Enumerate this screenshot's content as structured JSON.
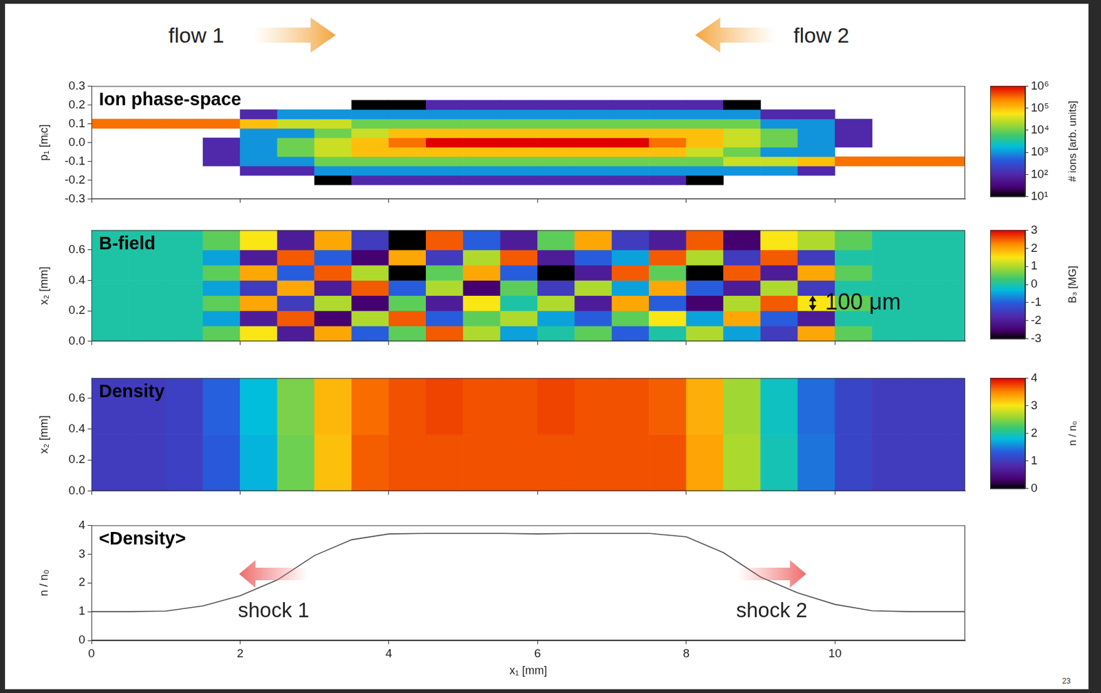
{
  "header": {
    "left": "flow 1",
    "right": "flow 2"
  },
  "page_number": "23",
  "chart_data": [
    {
      "type": "heatmap",
      "title": "Ion phase-space",
      "y_label": "p₁ [mᵢc]",
      "tick_labels": "y",
      "xlim": [
        0,
        11.75
      ],
      "xticks": [
        0,
        2,
        4,
        6,
        8,
        10
      ],
      "ylim": [
        -0.3,
        0.3
      ],
      "yticks": [
        -0.3,
        -0.2,
        -0.1,
        {
          "value": 0,
          "label": "0.0"
        },
        0.1,
        0.2,
        0.3
      ],
      "x_edges": [
        0,
        0.5,
        1,
        1.5,
        2,
        2.5,
        3,
        3.5,
        4,
        4.5,
        5,
        5.5,
        6,
        6.5,
        7,
        7.5,
        8,
        8.5,
        9,
        9.5,
        10,
        10.5,
        11,
        11.5,
        11.75
      ],
      "y_edges": [
        -0.275,
        -0.225,
        -0.175,
        -0.125,
        -0.075,
        -0.025,
        0.025,
        0.075,
        0.125,
        0.175,
        0.225,
        0.275
      ],
      "cells": [
        [
          null,
          null,
          null,
          null,
          null,
          null,
          null,
          null,
          null,
          null,
          null,
          null,
          null,
          null,
          null,
          null,
          null,
          null,
          null,
          null,
          null,
          null,
          null,
          null
        ],
        [
          null,
          null,
          null,
          null,
          null,
          null,
          10,
          100,
          100,
          100,
          100,
          100,
          100,
          100,
          100,
          100,
          10,
          null,
          null,
          null,
          null,
          null,
          null,
          null
        ],
        [
          null,
          null,
          null,
          null,
          100,
          100,
          1000,
          1000,
          1000,
          1000,
          1000,
          1000,
          1000,
          1000,
          1000,
          1000,
          1000,
          1000,
          1000,
          100,
          null,
          null,
          null,
          null
        ],
        [
          null,
          null,
          null,
          100,
          1000,
          1000,
          10000,
          10000,
          10000,
          10000,
          10000,
          10000,
          10000,
          10000,
          10000,
          10000,
          10000,
          30000,
          30000,
          100000,
          300000,
          300000,
          300000,
          300000
        ],
        [
          null,
          null,
          null,
          100,
          1000,
          10000,
          30000,
          100000,
          100000,
          100000,
          100000,
          100000,
          100000,
          100000,
          100000,
          100000,
          30000,
          10000,
          1000,
          1000,
          null,
          null,
          null,
          null
        ],
        [
          null,
          null,
          null,
          100,
          1000,
          10000,
          30000,
          100000,
          300000,
          1000000,
          1000000,
          1000000,
          1000000,
          1000000,
          1000000,
          300000,
          100000,
          30000,
          10000,
          1000,
          100,
          null,
          null,
          null
        ],
        [
          null,
          null,
          null,
          null,
          1000,
          1000,
          10000,
          30000,
          100000,
          100000,
          100000,
          100000,
          100000,
          100000,
          100000,
          100000,
          100000,
          30000,
          10000,
          1000,
          100,
          null,
          null,
          null
        ],
        [
          300000,
          300000,
          300000,
          300000,
          100000,
          30000,
          30000,
          10000,
          10000,
          10000,
          10000,
          10000,
          10000,
          10000,
          10000,
          10000,
          10000,
          10000,
          1000,
          1000,
          100,
          null,
          null,
          null
        ],
        [
          null,
          null,
          null,
          null,
          100,
          1000,
          1000,
          1000,
          1000,
          1000,
          1000,
          1000,
          1000,
          1000,
          1000,
          1000,
          1000,
          1000,
          100,
          100,
          null,
          null,
          null,
          null
        ],
        [
          null,
          null,
          null,
          null,
          null,
          null,
          null,
          10,
          10,
          100,
          100,
          100,
          100,
          100,
          100,
          100,
          100,
          10,
          null,
          null,
          null,
          null,
          null,
          null
        ],
        [
          null,
          null,
          null,
          null,
          null,
          null,
          null,
          null,
          null,
          null,
          null,
          null,
          null,
          null,
          null,
          null,
          null,
          null,
          null,
          null,
          null,
          null,
          null,
          null
        ]
      ],
      "colorbar": {
        "label": "# ions [arb. units]",
        "log": true,
        "range": [
          10,
          1000000
        ],
        "ticks": [
          {
            "value": 10,
            "label": "10¹"
          },
          {
            "value": 100,
            "label": "10²"
          },
          {
            "value": 1000,
            "label": "10³"
          },
          {
            "value": 10000,
            "label": "10⁴"
          },
          {
            "value": 100000,
            "label": "10⁵"
          },
          {
            "value": 1000000,
            "label": "10⁶"
          }
        ]
      }
    },
    {
      "type": "heatmap",
      "title": "B-field",
      "y_label": "x₂ [mm]",
      "tick_labels": "y",
      "xlim": [
        0,
        11.75
      ],
      "xticks": [
        0,
        2,
        4,
        6,
        8,
        10
      ],
      "ylim": [
        0,
        0.73
      ],
      "yticks": [
        {
          "value": 0,
          "label": "0.0"
        },
        0.2,
        0.4,
        0.6
      ],
      "x_edges": [
        0,
        0.5,
        1,
        1.5,
        2,
        2.5,
        3,
        3.5,
        4,
        4.5,
        5,
        5.5,
        6,
        6.5,
        7,
        7.5,
        8,
        8.5,
        9,
        9.5,
        10,
        10.5,
        11,
        11.5,
        11.75
      ],
      "y_edges": [
        0,
        0.1,
        0.2,
        0.3,
        0.4,
        0.5,
        0.6,
        0.73
      ],
      "cells": [
        [
          0,
          0,
          0,
          0.5,
          1.5,
          -2,
          2,
          -1,
          0.5,
          2.5,
          1,
          -0.5,
          0,
          0.5,
          -1,
          0,
          1,
          -0.5,
          -1.5,
          2,
          0.5,
          0,
          0,
          0
        ],
        [
          0,
          0,
          0,
          -0.5,
          -2,
          2.5,
          -2.5,
          1,
          2.5,
          -1,
          0.5,
          1,
          -0.5,
          -1,
          0.5,
          1.5,
          -0.5,
          2,
          -1,
          -2,
          0,
          0,
          0,
          0
        ],
        [
          0,
          0,
          0,
          0.5,
          2,
          -1.5,
          1,
          -2.5,
          0.5,
          -2,
          1.5,
          0,
          1,
          -2,
          2,
          -1,
          -2.5,
          1,
          2.5,
          1.5,
          0.5,
          0,
          0,
          0
        ],
        [
          0,
          0,
          0,
          -0.5,
          -1.5,
          2,
          -2,
          2.5,
          -1,
          1,
          -2.5,
          0.5,
          -1.5,
          1,
          -0.5,
          2,
          -1,
          -2,
          1,
          -1.5,
          0,
          0,
          0,
          0
        ],
        [
          0,
          0,
          0,
          0.5,
          2,
          -1,
          2.5,
          1,
          -3,
          0.5,
          2,
          -1,
          -3,
          -2,
          2.5,
          0.5,
          -3,
          2.5,
          -2,
          2,
          0.5,
          0,
          0,
          0
        ],
        [
          0,
          0,
          0,
          -0.5,
          -2,
          2.5,
          -1,
          -2.5,
          2,
          -1.5,
          1,
          2.5,
          -2,
          -1,
          -0.5,
          2.5,
          1,
          -1.5,
          2.5,
          -1.5,
          0,
          0,
          0,
          0
        ],
        [
          0,
          0,
          0,
          0.5,
          1.5,
          -2,
          2,
          -1.5,
          -3,
          2.5,
          -1,
          -2,
          0.5,
          2,
          -1.5,
          -2,
          2.5,
          -2.5,
          1.5,
          1,
          0.5,
          0,
          0,
          0
        ]
      ],
      "annotations": [
        {
          "text": "100 μm",
          "x": 9.7,
          "y": 0.2,
          "span": 0.1
        }
      ],
      "colorbar": {
        "label": "B₃ [MG]",
        "range": [
          -3,
          3
        ],
        "ticks": [
          -3,
          -2,
          -1,
          0,
          1,
          2,
          3
        ]
      }
    },
    {
      "type": "heatmap",
      "title": "Density",
      "y_label": "x₂ [mm]",
      "tick_labels": "y",
      "xlim": [
        0,
        11.75
      ],
      "xticks": [
        0,
        2,
        4,
        6,
        8,
        10
      ],
      "ylim": [
        0,
        0.73
      ],
      "yticks": [
        {
          "value": 0,
          "label": "0.0"
        },
        0.2,
        0.4,
        0.6
      ],
      "x_edges": [
        0,
        0.5,
        1,
        1.5,
        2,
        2.5,
        3,
        3.5,
        4,
        4.5,
        5,
        5.5,
        6,
        6.5,
        7,
        7.5,
        8,
        8.5,
        9,
        9.5,
        10,
        10.5,
        11,
        11.5,
        11.75
      ],
      "y_edges": [
        0,
        0.365,
        0.73
      ],
      "cells": [
        [
          1,
          1,
          1.05,
          1.3,
          1.75,
          2.4,
          3.2,
          3.65,
          3.7,
          3.7,
          3.7,
          3.7,
          3.7,
          3.7,
          3.7,
          3.7,
          3.35,
          2.65,
          1.95,
          1.45,
          1.1,
          1,
          1,
          1
        ],
        [
          1,
          1,
          1.05,
          1.35,
          1.8,
          2.45,
          3.25,
          3.6,
          3.7,
          3.75,
          3.7,
          3.7,
          3.75,
          3.7,
          3.7,
          3.65,
          3.3,
          2.6,
          1.9,
          1.4,
          1.1,
          1,
          1,
          1
        ]
      ],
      "colorbar": {
        "label": "n / n₀",
        "range": [
          0,
          4
        ],
        "ticks": [
          0,
          1,
          2,
          3,
          4
        ]
      }
    },
    {
      "type": "line",
      "title": "<Density>",
      "x_label": "x₁ [mm]",
      "y_label": "n / n₀",
      "color": "#4d4d4d",
      "xlim": [
        0,
        11.75
      ],
      "xticks": [
        0,
        2,
        4,
        6,
        8,
        10
      ],
      "ylim": [
        0,
        4
      ],
      "yticks": [
        0,
        1,
        2,
        3,
        4
      ],
      "x": [
        0,
        0.5,
        1,
        1.5,
        2,
        2.5,
        3,
        3.5,
        4,
        4.5,
        5,
        5.5,
        6,
        6.5,
        7,
        7.5,
        8,
        8.5,
        9,
        9.5,
        10,
        10.5,
        11,
        11.5,
        11.75
      ],
      "values": [
        1,
        1,
        1.02,
        1.2,
        1.55,
        2.1,
        2.95,
        3.5,
        3.7,
        3.72,
        3.72,
        3.72,
        3.7,
        3.72,
        3.72,
        3.72,
        3.6,
        3.05,
        2.2,
        1.65,
        1.25,
        1.03,
        1,
        1,
        1
      ],
      "annotations": [
        {
          "text": "shock 1",
          "x": 2.45,
          "y": 1.0
        },
        {
          "text": "shock 2",
          "x": 9.15,
          "y": 1.0
        }
      ]
    }
  ]
}
